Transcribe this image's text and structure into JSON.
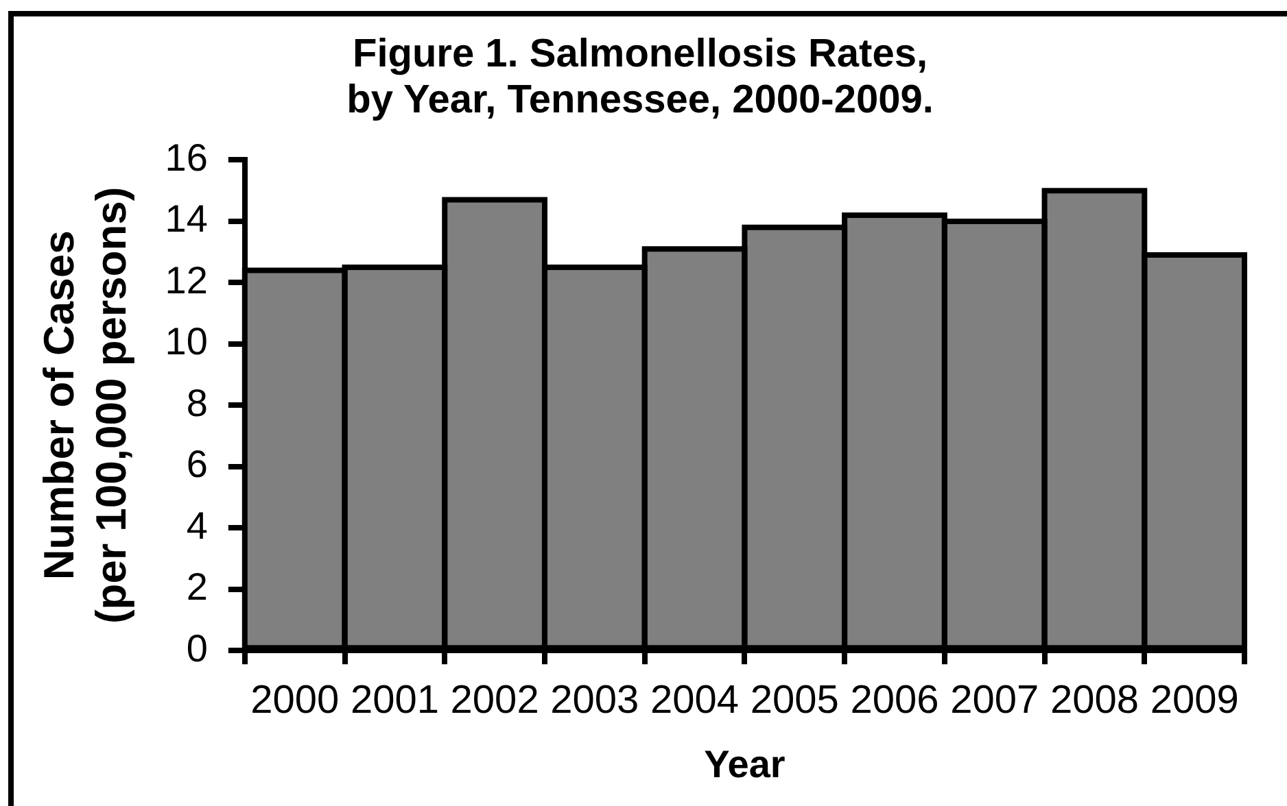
{
  "chart_data": {
    "type": "bar",
    "title": "Figure 1. Salmonellosis Rates,\nby Year, Tennessee, 2000-2009.",
    "xlabel": "Year",
    "ylabel": "Number of Cases\n(per 100,000 persons)",
    "categories": [
      "2000",
      "2001",
      "2002",
      "2003",
      "2004",
      "2005",
      "2006",
      "2007",
      "2008",
      "2009"
    ],
    "values": [
      12.4,
      12.5,
      14.7,
      12.5,
      13.1,
      13.8,
      14.2,
      14.0,
      15.0,
      12.9
    ],
    "color": "#808080",
    "ylim": [
      0,
      16
    ],
    "yticks": [
      0,
      2,
      4,
      6,
      8,
      10,
      12,
      14,
      16
    ],
    "legend": false
  }
}
